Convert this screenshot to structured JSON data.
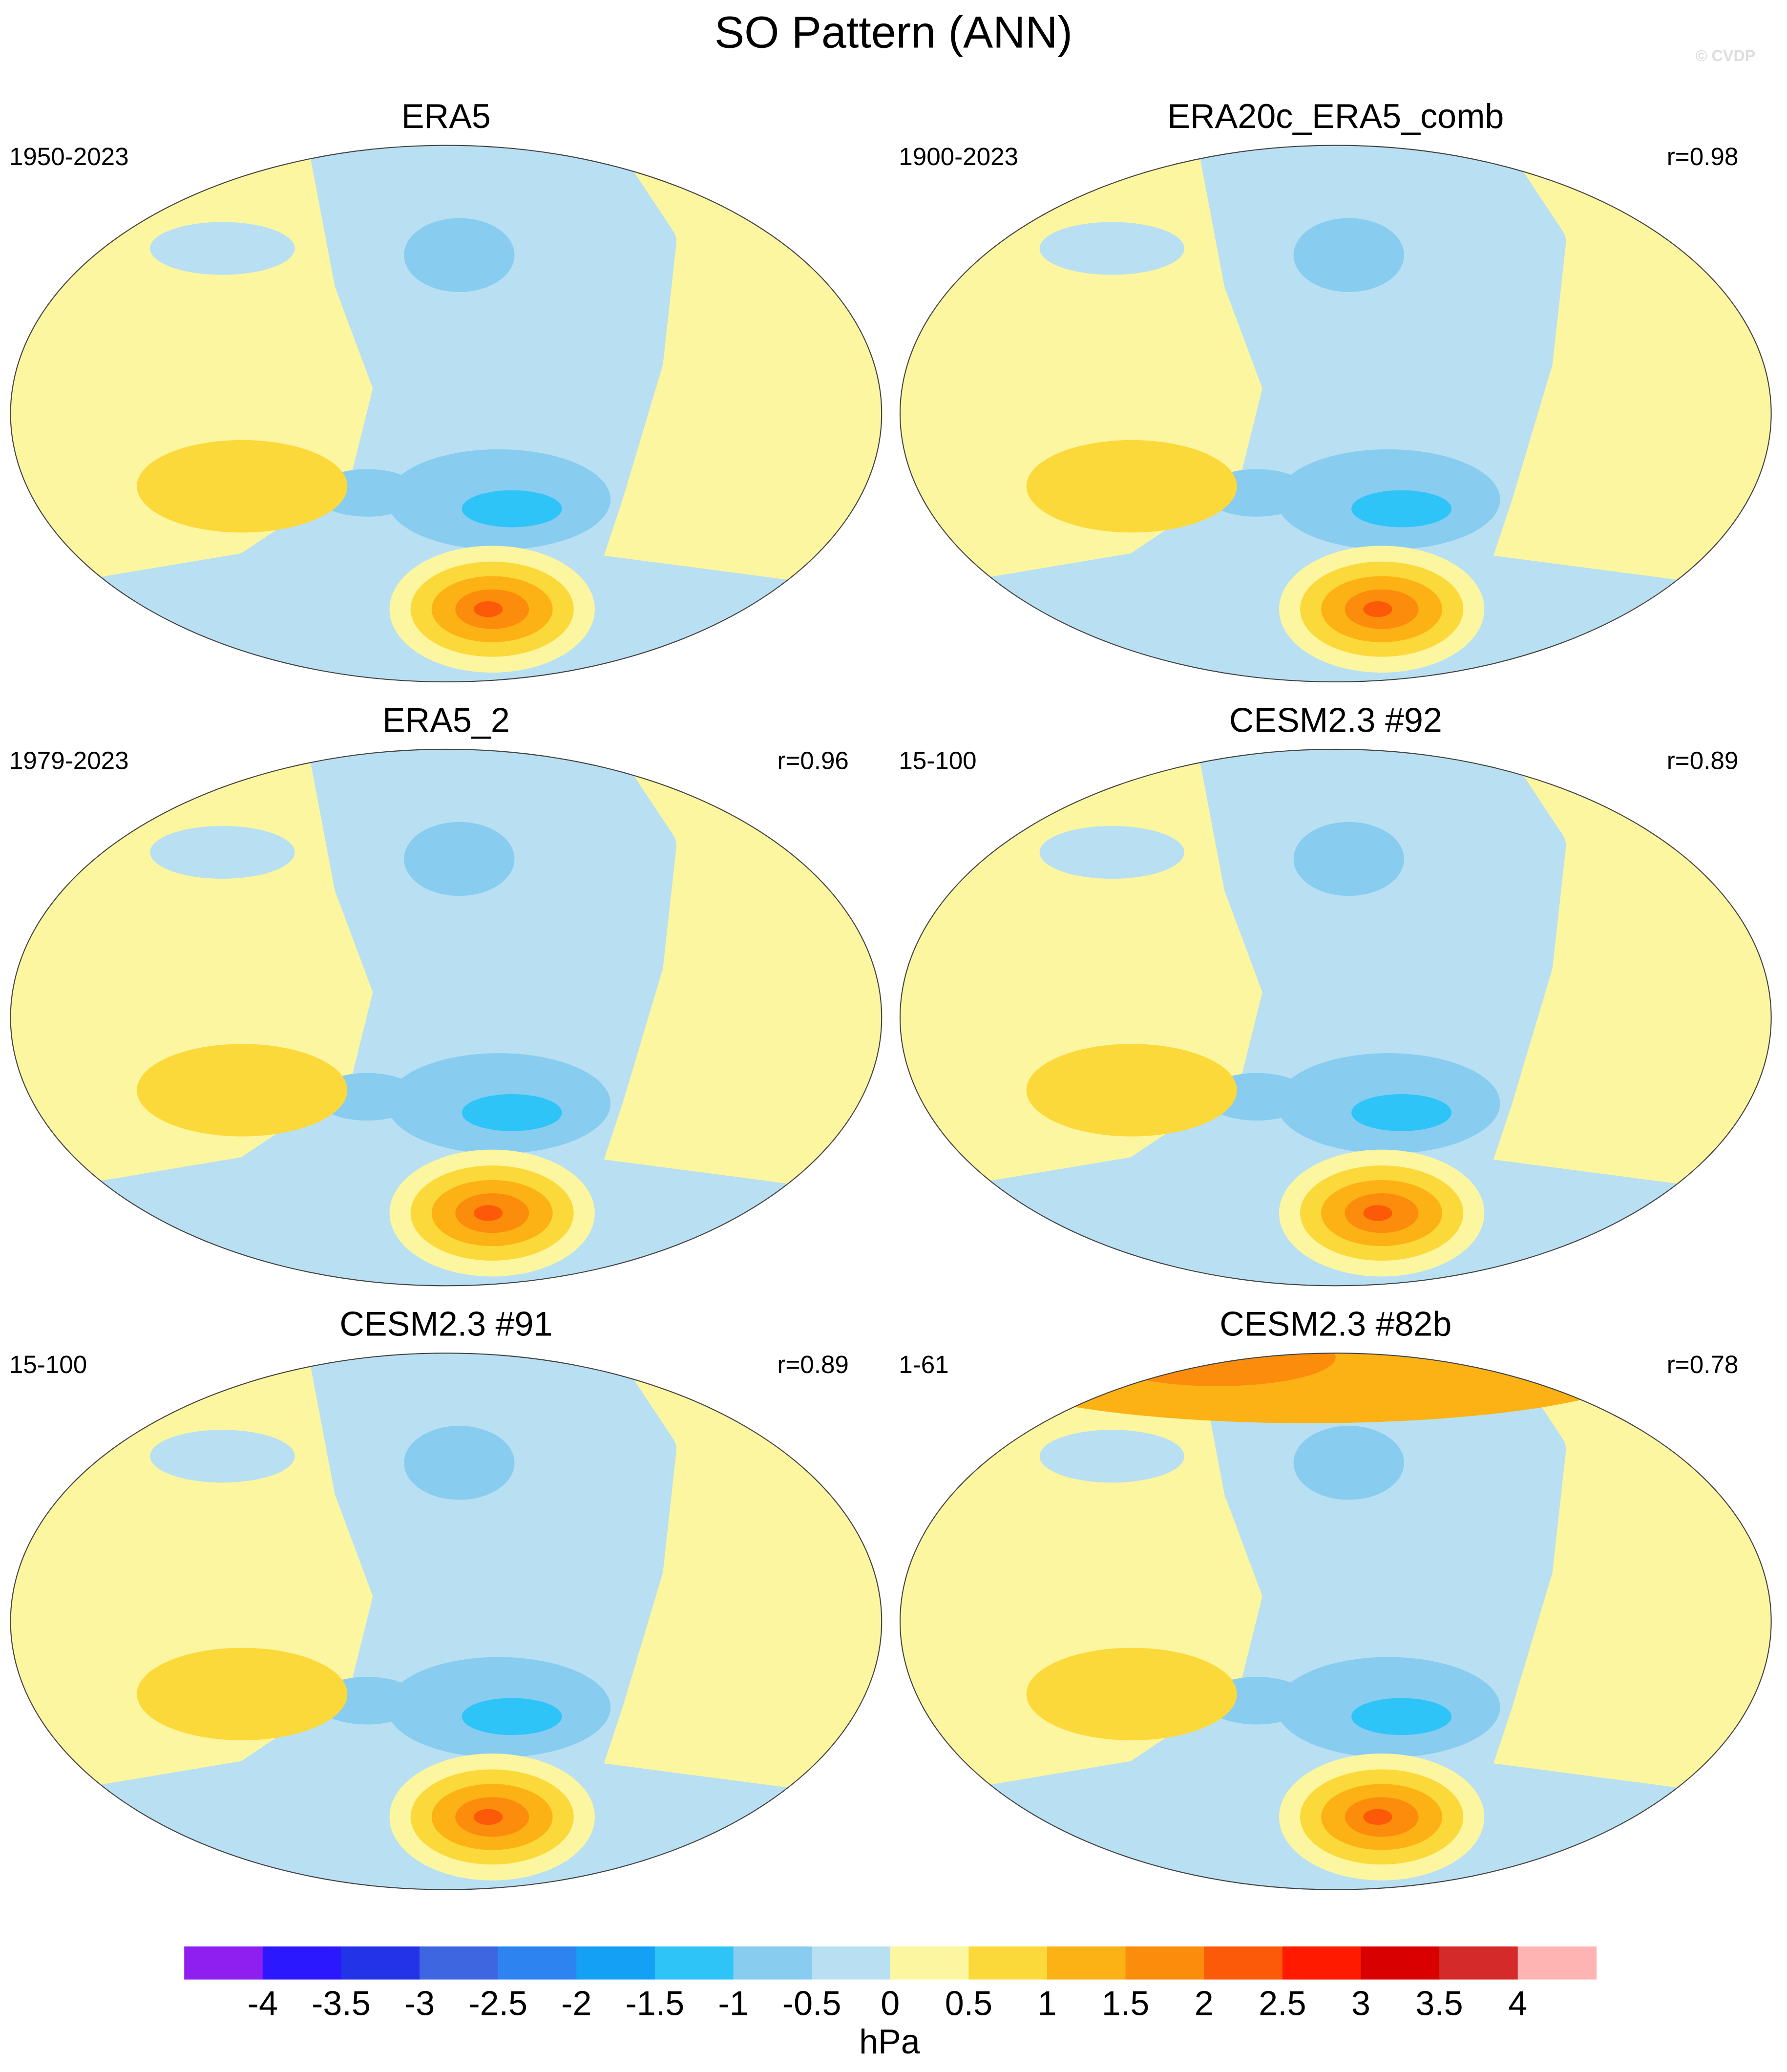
{
  "title": "SO Pattern (ANN)",
  "watermark": "© CVDP",
  "panels": [
    {
      "title": "ERA5",
      "period": "1950-2023"
    },
    {
      "title": "ERA20c_ERA5_comb",
      "period": "1900-2023",
      "r": "r=0.98"
    },
    {
      "title": "ERA5_2",
      "period": "1979-2023",
      "r": "r=0.96"
    },
    {
      "title": "CESM2.3 #92",
      "period": "15-100",
      "r": "r=0.89"
    },
    {
      "title": "CESM2.3 #91",
      "period": "15-100",
      "r": "r=0.89"
    },
    {
      "title": "CESM2.3 #82b",
      "period": "1-61",
      "r": "r=0.78"
    }
  ],
  "colorbar": {
    "ticks": [
      -4,
      -3.5,
      -3,
      -2.5,
      -2,
      -1.5,
      -1,
      -0.5,
      0,
      0.5,
      1,
      1.5,
      2,
      2.5,
      3,
      3.5,
      4
    ],
    "colors": [
      "#8f1ff0",
      "#2b18ff",
      "#2233e8",
      "#3d66e0",
      "#2d84f0",
      "#14a0f5",
      "#2ec4f8",
      "#88ccf0",
      "#b8e0f2",
      "#fdf6a0",
      "#fcd93a",
      "#fcb214",
      "#fc8c0c",
      "#fc5a08",
      "#ff1a00",
      "#d80000",
      "#d42a2a",
      "#ffb4b4"
    ],
    "units": "hPa"
  }
}
